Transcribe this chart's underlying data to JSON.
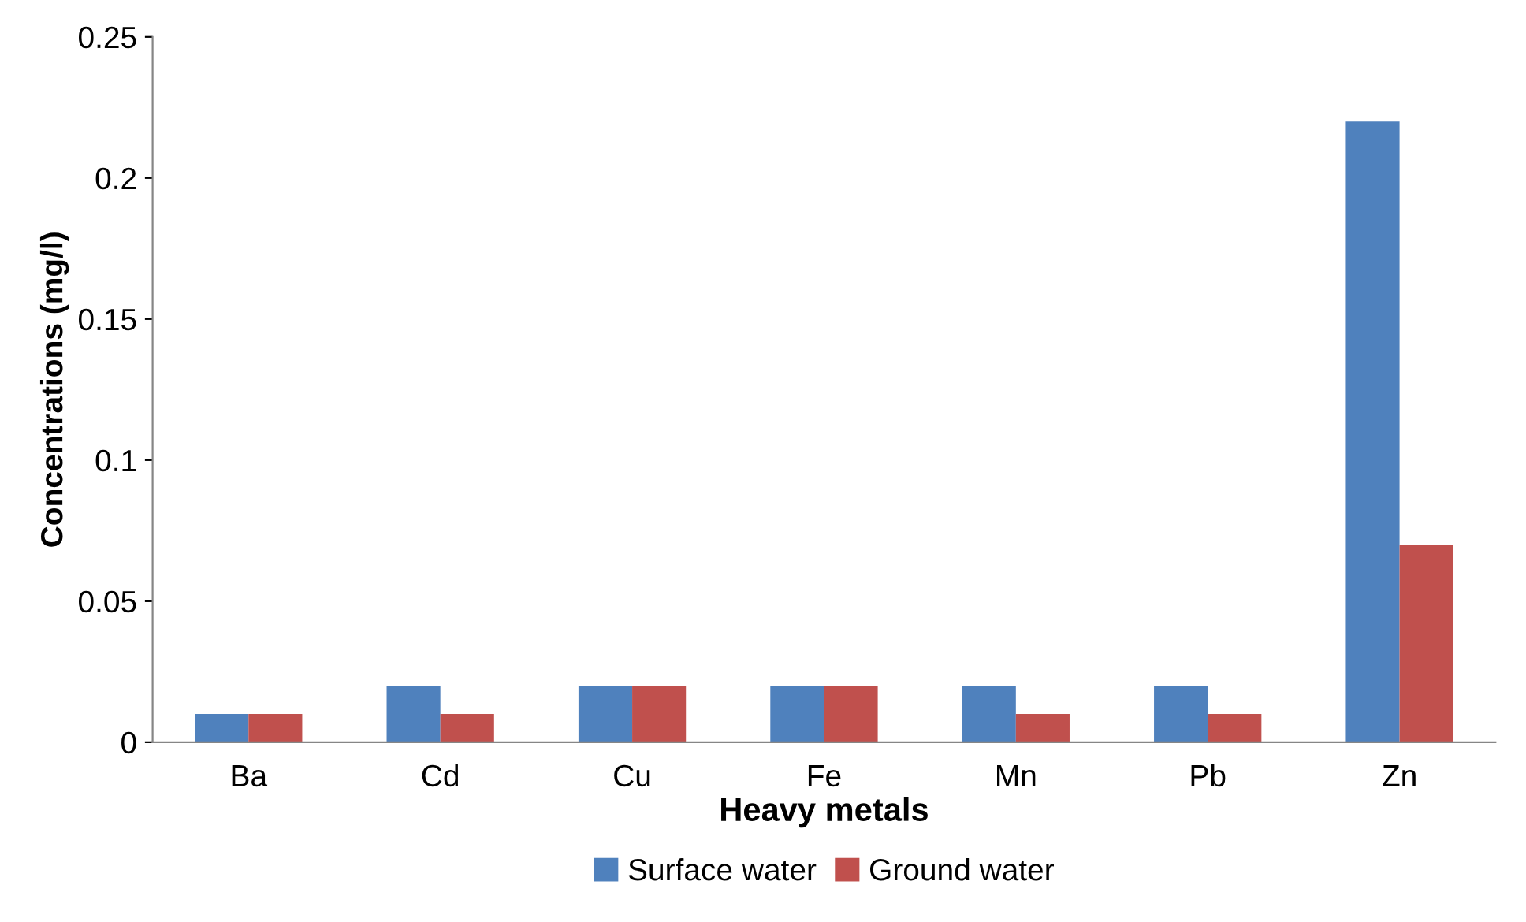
{
  "chart_data": {
    "type": "bar",
    "xlabel": "Heavy metals",
    "ylabel": "Concentrations (mg/l)",
    "categories": [
      "Ba",
      "Cd",
      "Cu",
      "Fe",
      "Mn",
      "Pb",
      "Zn"
    ],
    "series": [
      {
        "name": "Surface water",
        "color": "#4f81bd",
        "values": [
          0.01,
          0.02,
          0.02,
          0.02,
          0.02,
          0.02,
          0.22
        ]
      },
      {
        "name": "Ground water",
        "color": "#c0504d",
        "values": [
          0.01,
          0.01,
          0.02,
          0.02,
          0.01,
          0.01,
          0.07
        ]
      }
    ],
    "ylim": [
      0,
      0.25
    ],
    "yticks": [
      0,
      0.05,
      0.1,
      0.15,
      0.2,
      0.25
    ],
    "grid": false,
    "legend": "bottom"
  }
}
